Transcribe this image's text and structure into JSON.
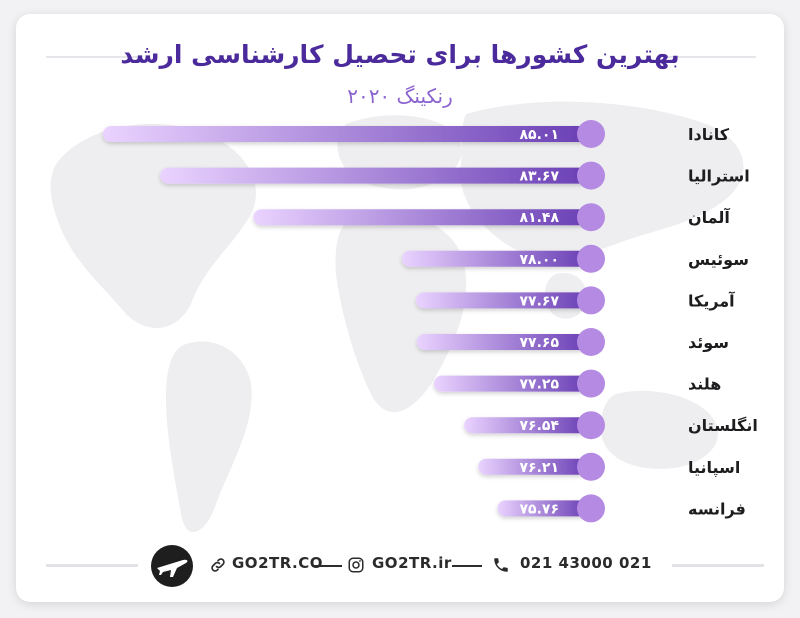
{
  "title": "بهترین کشورها برای تحصیل کارشناسی ارشد",
  "subtitle": "رنکینگ ۲۰۲۰",
  "chart_data": {
    "type": "bar",
    "orientation": "horizontal",
    "categories": [
      "کانادا",
      "استرالیا",
      "آلمان",
      "سوئیس",
      "آمریکا",
      "سوئد",
      "هلند",
      "انگلستان",
      "اسپانیا",
      "فرانسه"
    ],
    "values": [
      85.01,
      83.67,
      81.48,
      78.0,
      77.67,
      77.65,
      77.25,
      76.54,
      76.21,
      75.76
    ],
    "value_labels": [
      "۸۵.۰۱",
      "۸۳.۶۷",
      "۸۱.۴۸",
      "۷۸.۰۰",
      "۷۷.۶۷",
      "۷۷.۶۵",
      "۷۷.۲۵",
      "۷۶.۵۴",
      "۷۶.۲۱",
      "۷۵.۷۶"
    ],
    "title": "بهترین کشورها برای تحصیل کارشناسی ارشد",
    "subtitle": "رنکینگ ۲۰۲۰",
    "xlabel": "",
    "ylabel": "",
    "grid": false
  },
  "colors": {
    "title": "#4b2a9c",
    "subtitle": "#8a63cf",
    "bar_dark": "#6a3fb5",
    "bar_light": "#ead3ff",
    "circle": "#b48ae3",
    "label_text": "#ffffff"
  },
  "footer": {
    "phone": "021 43000 021",
    "instagram": "GO2TR.ir",
    "website": "GO2TR.CO",
    "phone_icon": "phone-icon",
    "instagram_icon": "instagram-icon",
    "link_icon": "link-icon",
    "logo_icon": "go2tr-plane-logo"
  }
}
